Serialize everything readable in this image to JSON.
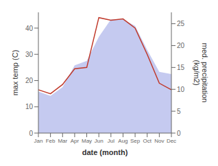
{
  "chart_data": {
    "type": "combo",
    "categories": [
      "Jan",
      "Feb",
      "Mar",
      "Apr",
      "May",
      "Jun",
      "Jul",
      "Aug",
      "Sep",
      "Oct",
      "Nov",
      "Dec"
    ],
    "xlabel": "date (month)",
    "ylabel": "max temp (C)",
    "y2label": "med. precipitation\n(kg/m2)",
    "ylim": [
      0,
      46
    ],
    "yticks": [
      0,
      10,
      20,
      30,
      40
    ],
    "y2lim": [
      0,
      27.6
    ],
    "y2ticks": [
      0,
      5,
      10,
      15,
      20,
      25
    ],
    "series": [
      {
        "type": "area",
        "axis": "y2",
        "color": "#c5caf0",
        "values": [
          9.5,
          8.5,
          10.5,
          15.5,
          16.5,
          22.0,
          26.0,
          26.0,
          24.5,
          19.0,
          14.0,
          13.5
        ]
      },
      {
        "type": "line",
        "axis": "y",
        "color": "#c0392b",
        "values": [
          16.5,
          15.0,
          18.5,
          24.5,
          25.0,
          44.0,
          43.0,
          43.5,
          40.0,
          30.0,
          19.0,
          16.5
        ]
      }
    ]
  }
}
